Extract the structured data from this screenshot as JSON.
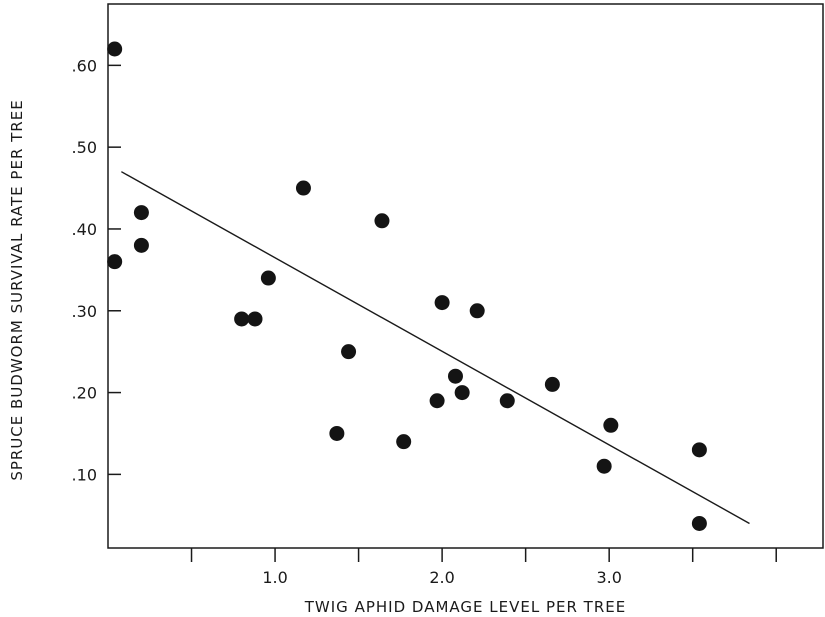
{
  "chart_data": {
    "type": "scatter",
    "title": "",
    "xlabel": "TWIG APHID DAMAGE LEVEL PER TREE",
    "ylabel": "SPRUCE BUDWORM SURVIVAL RATE PER TREE",
    "xlim": [
      0.0,
      4.28
    ],
    "ylim": [
      0.01,
      0.675
    ],
    "grid": false,
    "legend": "none",
    "x_ticks": [
      0.5,
      1.0,
      1.5,
      2.0,
      2.5,
      3.0,
      3.5,
      4.0
    ],
    "x_tick_labels": [
      {
        "value": 1.0,
        "label": "1.0"
      },
      {
        "value": 2.0,
        "label": "2.0"
      },
      {
        "value": 3.0,
        "label": "3.0"
      }
    ],
    "y_ticks": [
      0.1,
      0.2,
      0.3,
      0.4,
      0.5,
      0.6
    ],
    "y_tick_labels": [
      {
        "value": 0.1,
        "label": ".10"
      },
      {
        "value": 0.2,
        "label": ".20"
      },
      {
        "value": 0.3,
        "label": ".30"
      },
      {
        "value": 0.4,
        "label": ".40"
      },
      {
        "value": 0.5,
        "label": ".50"
      },
      {
        "value": 0.6,
        "label": ".60"
      }
    ],
    "series": [
      {
        "points": [
          {
            "x": 0.04,
            "y": 0.62
          },
          {
            "x": 0.04,
            "y": 0.36
          },
          {
            "x": 0.2,
            "y": 0.42
          },
          {
            "x": 0.2,
            "y": 0.38
          },
          {
            "x": 0.8,
            "y": 0.29
          },
          {
            "x": 0.88,
            "y": 0.29
          },
          {
            "x": 0.96,
            "y": 0.34
          },
          {
            "x": 1.17,
            "y": 0.45
          },
          {
            "x": 1.37,
            "y": 0.15
          },
          {
            "x": 1.44,
            "y": 0.25
          },
          {
            "x": 1.64,
            "y": 0.41
          },
          {
            "x": 1.77,
            "y": 0.14
          },
          {
            "x": 1.97,
            "y": 0.19
          },
          {
            "x": 2.0,
            "y": 0.31
          },
          {
            "x": 2.08,
            "y": 0.22
          },
          {
            "x": 2.12,
            "y": 0.2
          },
          {
            "x": 2.21,
            "y": 0.3
          },
          {
            "x": 2.39,
            "y": 0.19
          },
          {
            "x": 2.66,
            "y": 0.21
          },
          {
            "x": 2.97,
            "y": 0.11
          },
          {
            "x": 3.01,
            "y": 0.16
          },
          {
            "x": 3.54,
            "y": 0.13
          },
          {
            "x": 3.54,
            "y": 0.04
          }
        ]
      }
    ],
    "trend_line": {
      "x": [
        0.08,
        3.84
      ],
      "y": [
        0.47,
        0.04
      ]
    },
    "colors": {
      "points": "#141414",
      "line": "#1a1a1a",
      "frame": "#1a1a1a"
    }
  }
}
